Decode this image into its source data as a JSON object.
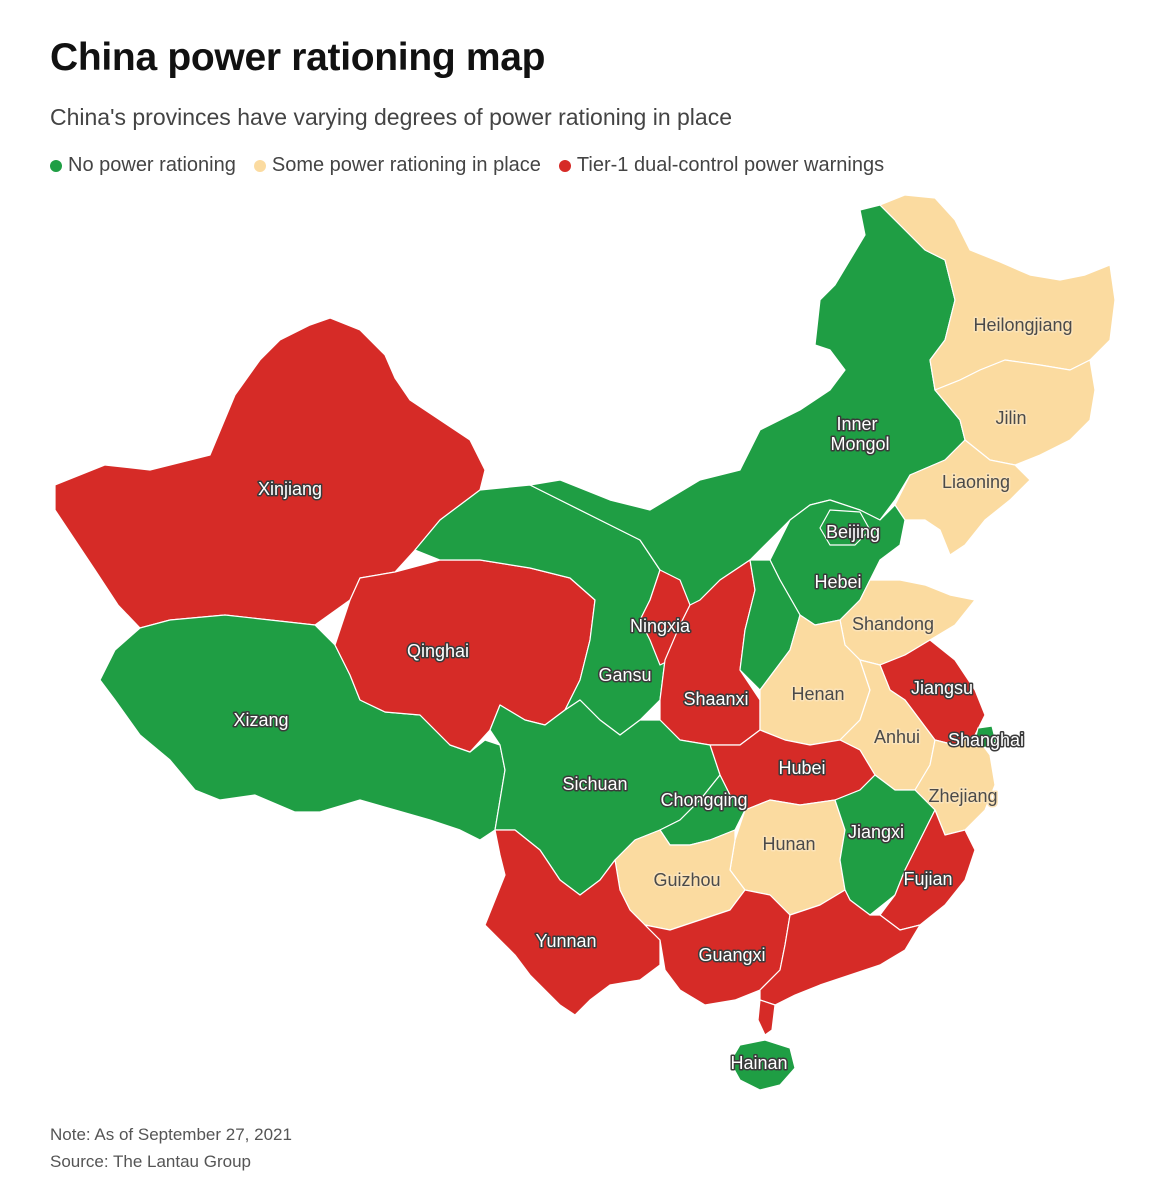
{
  "title": "China power rationing map",
  "subtitle": "China's provinces have varying degrees of power rationing in place",
  "legend": [
    {
      "label": "No power rationing",
      "color": "#1f9e44"
    },
    {
      "label": "Some power rationing in place",
      "color": "#fbdba0"
    },
    {
      "label": "Tier-1 dual-control power warnings",
      "color": "#d62b27"
    }
  ],
  "provinces": {
    "xinjiang": {
      "name": "Xinjiang",
      "status": "Tier-1 dual-control power warnings"
    },
    "xizang": {
      "name": "Xizang",
      "status": "No power rationing"
    },
    "qinghai": {
      "name": "Qinghai",
      "status": "Tier-1 dual-control power warnings"
    },
    "gansu": {
      "name": "Gansu",
      "status": "No power rationing"
    },
    "ningxia": {
      "name": "Ningxia",
      "status": "Tier-1 dual-control power warnings"
    },
    "inner_mongol": {
      "name_line1": "Inner",
      "name_line2": "Mongol",
      "status": "No power rationing"
    },
    "heilongjiang": {
      "name": "Heilongjiang",
      "status": "Some power rationing in place"
    },
    "jilin": {
      "name": "Jilin",
      "status": "Some power rationing in place"
    },
    "liaoning": {
      "name": "Liaoning",
      "status": "Some power rationing in place"
    },
    "beijing": {
      "name": "Beijing",
      "status": "No power rationing"
    },
    "hebei": {
      "name": "Hebei",
      "status": "No power rationing"
    },
    "shandong": {
      "name": "Shandong",
      "status": "Some power rationing in place"
    },
    "henan": {
      "name": "Henan",
      "status": "Some power rationing in place"
    },
    "shaanxi": {
      "name": "Shaanxi",
      "status": "Tier-1 dual-control power warnings"
    },
    "jiangsu": {
      "name": "Jiangsu",
      "status": "Tier-1 dual-control power warnings"
    },
    "anhui": {
      "name": "Anhui",
      "status": "Some power rationing in place"
    },
    "shanghai": {
      "name": "Shanghai",
      "status": "No power rationing"
    },
    "zhejiang": {
      "name": "Zhejiang",
      "status": "Some power rationing in place"
    },
    "hubei": {
      "name": "Hubei",
      "status": "Tier-1 dual-control power warnings"
    },
    "sichuan": {
      "name": "Sichuan",
      "status": "No power rationing"
    },
    "chongqing": {
      "name": "Chongqing",
      "status": "No power rationing"
    },
    "hunan": {
      "name": "Hunan",
      "status": "Some power rationing in place"
    },
    "jiangxi": {
      "name": "Jiangxi",
      "status": "No power rationing"
    },
    "fujian": {
      "name": "Fujian",
      "status": "Tier-1 dual-control power warnings"
    },
    "guizhou": {
      "name": "Guizhou",
      "status": "Some power rationing in place"
    },
    "yunnan": {
      "name": "Yunnan",
      "status": "Tier-1 dual-control power warnings"
    },
    "guangxi": {
      "name": "Guangxi",
      "status": "Tier-1 dual-control power warnings"
    },
    "guangdong": {
      "status": "Tier-1 dual-control power warnings"
    },
    "hainan": {
      "name": "Hainan",
      "status": "No power rationing"
    }
  },
  "footer": {
    "note": "Note: As of September 27, 2021",
    "source": "Source: The Lantau Group"
  }
}
